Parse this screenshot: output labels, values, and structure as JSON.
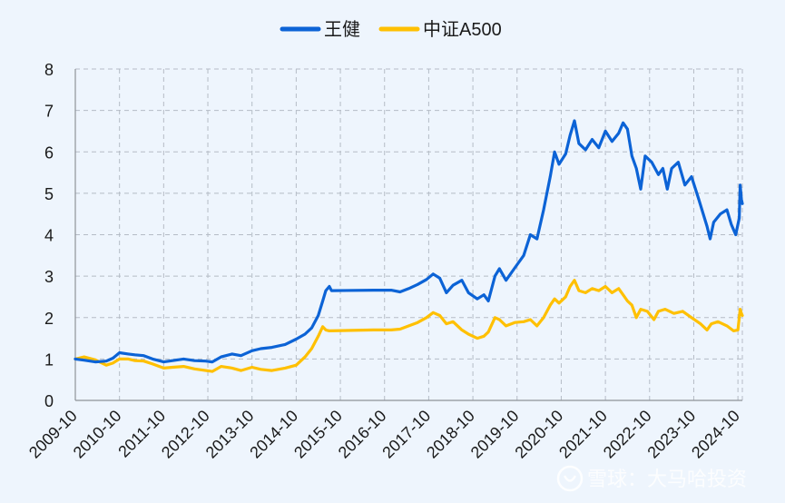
{
  "colors": {
    "background": "#eef5fd",
    "series_wangjian": "#0c63d6",
    "series_csia500": "#ffc000"
  },
  "watermark": {
    "text": "雪球：大马哈投资",
    "icon": "snowball-logo-icon"
  },
  "chart_data": {
    "type": "line",
    "title": "",
    "xlabel": "",
    "ylabel": "",
    "legend_position": "top-center",
    "grid": true,
    "ylim": [
      0,
      8
    ],
    "y_ticks": [
      "0",
      "1",
      "2",
      "3",
      "4",
      "5",
      "6",
      "7",
      "8"
    ],
    "x_ticks": [
      "2009-10",
      "2010-10",
      "2011-10",
      "2012-10",
      "2013-10",
      "2014-10",
      "2015-10",
      "2016-10",
      "2017-10",
      "2018-10",
      "2019-10",
      "2020-10",
      "2021-10",
      "2022-10",
      "2023-10",
      "2024-10"
    ],
    "x_range": [
      2009.75,
      2024.85
    ],
    "series": [
      {
        "name": "王健",
        "color": "#0c63d6",
        "points": [
          [
            2009.75,
            1.0
          ],
          [
            2009.95,
            0.97
          ],
          [
            2010.2,
            0.93
          ],
          [
            2010.45,
            0.95
          ],
          [
            2010.6,
            1.02
          ],
          [
            2010.75,
            1.15
          ],
          [
            2010.95,
            1.12
          ],
          [
            2011.1,
            1.1
          ],
          [
            2011.3,
            1.08
          ],
          [
            2011.5,
            1.0
          ],
          [
            2011.75,
            0.93
          ],
          [
            2011.95,
            0.96
          ],
          [
            2012.2,
            1.0
          ],
          [
            2012.45,
            0.96
          ],
          [
            2012.7,
            0.95
          ],
          [
            2012.85,
            0.93
          ],
          [
            2013.05,
            1.05
          ],
          [
            2013.3,
            1.12
          ],
          [
            2013.5,
            1.08
          ],
          [
            2013.75,
            1.2
          ],
          [
            2013.95,
            1.25
          ],
          [
            2014.2,
            1.28
          ],
          [
            2014.5,
            1.35
          ],
          [
            2014.75,
            1.48
          ],
          [
            2014.95,
            1.6
          ],
          [
            2015.1,
            1.75
          ],
          [
            2015.25,
            2.05
          ],
          [
            2015.35,
            2.4
          ],
          [
            2015.42,
            2.65
          ],
          [
            2015.5,
            2.75
          ],
          [
            2015.55,
            2.65
          ],
          [
            2016.5,
            2.66
          ],
          [
            2016.9,
            2.66
          ],
          [
            2017.1,
            2.62
          ],
          [
            2017.3,
            2.7
          ],
          [
            2017.5,
            2.8
          ],
          [
            2017.7,
            2.92
          ],
          [
            2017.85,
            3.05
          ],
          [
            2018.0,
            2.95
          ],
          [
            2018.15,
            2.6
          ],
          [
            2018.3,
            2.78
          ],
          [
            2018.5,
            2.9
          ],
          [
            2018.65,
            2.6
          ],
          [
            2018.85,
            2.45
          ],
          [
            2019.0,
            2.55
          ],
          [
            2019.1,
            2.4
          ],
          [
            2019.25,
            3.0
          ],
          [
            2019.35,
            3.18
          ],
          [
            2019.5,
            2.9
          ],
          [
            2019.7,
            3.2
          ],
          [
            2019.9,
            3.5
          ],
          [
            2020.05,
            4.0
          ],
          [
            2020.2,
            3.9
          ],
          [
            2020.35,
            4.6
          ],
          [
            2020.5,
            5.4
          ],
          [
            2020.6,
            6.0
          ],
          [
            2020.7,
            5.7
          ],
          [
            2020.85,
            5.95
          ],
          [
            2020.95,
            6.4
          ],
          [
            2021.05,
            6.75
          ],
          [
            2021.15,
            6.2
          ],
          [
            2021.3,
            6.05
          ],
          [
            2021.45,
            6.3
          ],
          [
            2021.6,
            6.1
          ],
          [
            2021.75,
            6.5
          ],
          [
            2021.9,
            6.25
          ],
          [
            2022.05,
            6.45
          ],
          [
            2022.15,
            6.7
          ],
          [
            2022.25,
            6.55
          ],
          [
            2022.35,
            5.9
          ],
          [
            2022.45,
            5.6
          ],
          [
            2022.55,
            5.1
          ],
          [
            2022.65,
            5.9
          ],
          [
            2022.8,
            5.75
          ],
          [
            2022.95,
            5.45
          ],
          [
            2023.05,
            5.6
          ],
          [
            2023.15,
            5.1
          ],
          [
            2023.25,
            5.6
          ],
          [
            2023.4,
            5.75
          ],
          [
            2023.55,
            5.2
          ],
          [
            2023.7,
            5.4
          ],
          [
            2023.85,
            4.9
          ],
          [
            2023.95,
            4.55
          ],
          [
            2024.05,
            4.2
          ],
          [
            2024.12,
            3.9
          ],
          [
            2024.2,
            4.3
          ],
          [
            2024.35,
            4.5
          ],
          [
            2024.5,
            4.6
          ],
          [
            2024.6,
            4.25
          ],
          [
            2024.7,
            4.0
          ],
          [
            2024.78,
            4.4
          ],
          [
            2024.8,
            5.2
          ],
          [
            2024.83,
            4.85
          ],
          [
            2024.85,
            4.75
          ]
        ]
      },
      {
        "name": "中证A500",
        "color": "#ffc000",
        "points": [
          [
            2009.75,
            1.0
          ],
          [
            2009.95,
            1.05
          ],
          [
            2010.2,
            0.98
          ],
          [
            2010.45,
            0.85
          ],
          [
            2010.6,
            0.9
          ],
          [
            2010.75,
            1.0
          ],
          [
            2010.95,
            1.0
          ],
          [
            2011.1,
            0.96
          ],
          [
            2011.3,
            0.95
          ],
          [
            2011.5,
            0.88
          ],
          [
            2011.75,
            0.78
          ],
          [
            2011.95,
            0.8
          ],
          [
            2012.2,
            0.82
          ],
          [
            2012.45,
            0.76
          ],
          [
            2012.7,
            0.72
          ],
          [
            2012.85,
            0.7
          ],
          [
            2013.05,
            0.82
          ],
          [
            2013.3,
            0.78
          ],
          [
            2013.5,
            0.72
          ],
          [
            2013.75,
            0.8
          ],
          [
            2013.95,
            0.75
          ],
          [
            2014.2,
            0.72
          ],
          [
            2014.5,
            0.78
          ],
          [
            2014.75,
            0.85
          ],
          [
            2014.95,
            1.05
          ],
          [
            2015.1,
            1.25
          ],
          [
            2015.25,
            1.55
          ],
          [
            2015.35,
            1.78
          ],
          [
            2015.42,
            1.7
          ],
          [
            2015.5,
            1.68
          ],
          [
            2016.5,
            1.7
          ],
          [
            2016.9,
            1.7
          ],
          [
            2017.1,
            1.72
          ],
          [
            2017.3,
            1.8
          ],
          [
            2017.5,
            1.88
          ],
          [
            2017.7,
            2.0
          ],
          [
            2017.85,
            2.12
          ],
          [
            2018.0,
            2.05
          ],
          [
            2018.15,
            1.85
          ],
          [
            2018.3,
            1.9
          ],
          [
            2018.5,
            1.7
          ],
          [
            2018.65,
            1.6
          ],
          [
            2018.85,
            1.5
          ],
          [
            2019.0,
            1.55
          ],
          [
            2019.1,
            1.65
          ],
          [
            2019.25,
            2.0
          ],
          [
            2019.35,
            1.95
          ],
          [
            2019.5,
            1.8
          ],
          [
            2019.7,
            1.88
          ],
          [
            2019.9,
            1.9
          ],
          [
            2020.05,
            1.95
          ],
          [
            2020.2,
            1.8
          ],
          [
            2020.35,
            2.0
          ],
          [
            2020.5,
            2.3
          ],
          [
            2020.6,
            2.45
          ],
          [
            2020.7,
            2.35
          ],
          [
            2020.85,
            2.5
          ],
          [
            2020.95,
            2.75
          ],
          [
            2021.05,
            2.9
          ],
          [
            2021.15,
            2.65
          ],
          [
            2021.3,
            2.6
          ],
          [
            2021.45,
            2.7
          ],
          [
            2021.6,
            2.65
          ],
          [
            2021.75,
            2.75
          ],
          [
            2021.9,
            2.6
          ],
          [
            2022.05,
            2.7
          ],
          [
            2022.15,
            2.55
          ],
          [
            2022.25,
            2.4
          ],
          [
            2022.35,
            2.3
          ],
          [
            2022.45,
            2.0
          ],
          [
            2022.55,
            2.2
          ],
          [
            2022.7,
            2.15
          ],
          [
            2022.85,
            1.95
          ],
          [
            2022.95,
            2.15
          ],
          [
            2023.1,
            2.2
          ],
          [
            2023.3,
            2.1
          ],
          [
            2023.5,
            2.15
          ],
          [
            2023.7,
            2.0
          ],
          [
            2023.9,
            1.85
          ],
          [
            2024.05,
            1.7
          ],
          [
            2024.15,
            1.85
          ],
          [
            2024.3,
            1.9
          ],
          [
            2024.5,
            1.8
          ],
          [
            2024.65,
            1.68
          ],
          [
            2024.75,
            1.7
          ],
          [
            2024.8,
            2.2
          ],
          [
            2024.83,
            2.1
          ],
          [
            2024.85,
            2.05
          ]
        ]
      }
    ]
  }
}
